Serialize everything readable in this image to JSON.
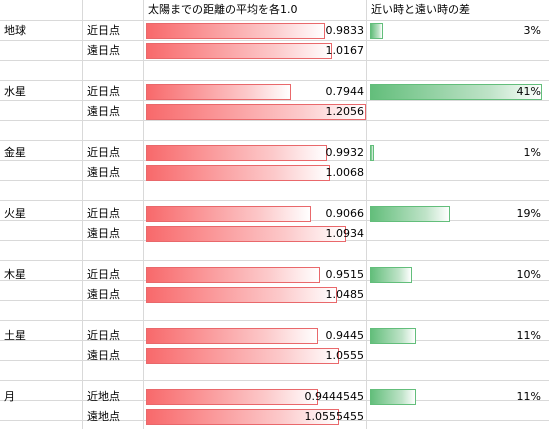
{
  "headers": {
    "ratio": "太陽までの距離の平均を各1.0",
    "diff": "近い時と遠い時の差"
  },
  "bar_scale_max": 1.2056,
  "diff_scale_max": 0.41,
  "colors": {
    "red_bar": "#f8696b",
    "green_bar": "#63be7b",
    "grid": "#d9d9d9"
  },
  "bodies": [
    {
      "name": "地球",
      "near_label": "近日点",
      "far_label": "遠日点",
      "near": 0.9833,
      "near_text": "0.9833",
      "far": 1.0167,
      "far_text": "1.0167",
      "diff": 0.03,
      "diff_text": "3%"
    },
    {
      "name": "水星",
      "near_label": "近日点",
      "far_label": "遠日点",
      "near": 0.7944,
      "near_text": "0.7944",
      "far": 1.2056,
      "far_text": "1.2056",
      "diff": 0.41,
      "diff_text": "41%"
    },
    {
      "name": "金星",
      "near_label": "近日点",
      "far_label": "遠日点",
      "near": 0.9932,
      "near_text": "0.9932",
      "far": 1.0068,
      "far_text": "1.0068",
      "diff": 0.01,
      "diff_text": "1%"
    },
    {
      "name": "火星",
      "near_label": "近日点",
      "far_label": "遠日点",
      "near": 0.9066,
      "near_text": "0.9066",
      "far": 1.0934,
      "far_text": "1.0934",
      "diff": 0.19,
      "diff_text": "19%"
    },
    {
      "name": "木星",
      "near_label": "近日点",
      "far_label": "遠日点",
      "near": 0.9515,
      "near_text": "0.9515",
      "far": 1.0485,
      "far_text": "1.0485",
      "diff": 0.1,
      "diff_text": "10%"
    },
    {
      "name": "土星",
      "near_label": "近日点",
      "far_label": "遠日点",
      "near": 0.9445,
      "near_text": "0.9445",
      "far": 1.0555,
      "far_text": "1.0555",
      "diff": 0.11,
      "diff_text": "11%"
    },
    {
      "name": "月",
      "near_label": "近地点",
      "far_label": "遠地点",
      "near": 0.9444545,
      "near_text": "0.9444545",
      "far": 1.0555455,
      "far_text": "1.0555455",
      "diff": 0.11,
      "diff_text": "11%"
    }
  ]
}
